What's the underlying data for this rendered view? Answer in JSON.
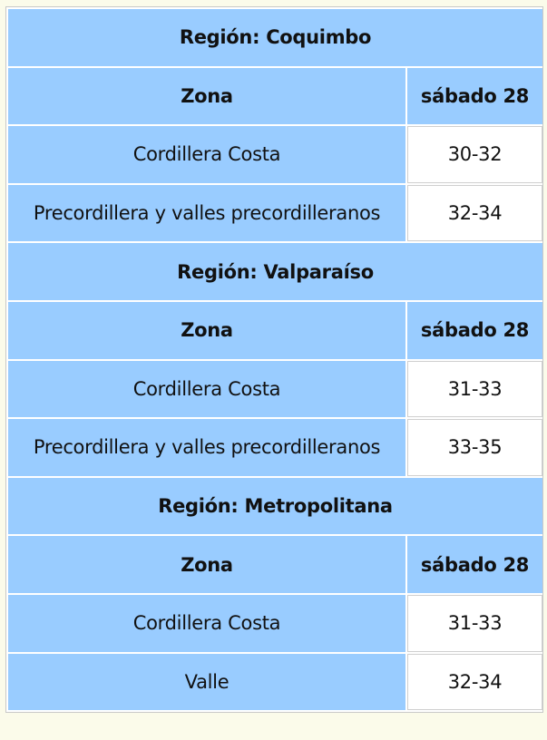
{
  "regions": [
    {
      "title": "Región: Coquimbo",
      "header": {
        "zona": "Zona",
        "day": "sábado 28"
      },
      "rows": [
        {
          "zona": "Cordillera Costa",
          "value": "30-32"
        },
        {
          "zona": "Precordillera y valles precordilleranos",
          "value": "32-34"
        }
      ]
    },
    {
      "title": "Región: Valparaíso",
      "header": {
        "zona": "Zona",
        "day": "sábado 28"
      },
      "rows": [
        {
          "zona": "Cordillera Costa",
          "value": "31-33"
        },
        {
          "zona": "Precordillera y valles precordilleranos",
          "value": "33-35"
        }
      ]
    },
    {
      "title": "Región: Metropolitana",
      "header": {
        "zona": "Zona",
        "day": "sábado 28"
      },
      "rows": [
        {
          "zona": "Cordillera Costa",
          "value": "31-33"
        },
        {
          "zona": "Valle",
          "value": "32-34"
        }
      ]
    }
  ],
  "colors": {
    "header_bg": "#99ccff",
    "value_bg": "#ffffff",
    "page_bg": "#fbfbea",
    "border": "#cccccc"
  }
}
